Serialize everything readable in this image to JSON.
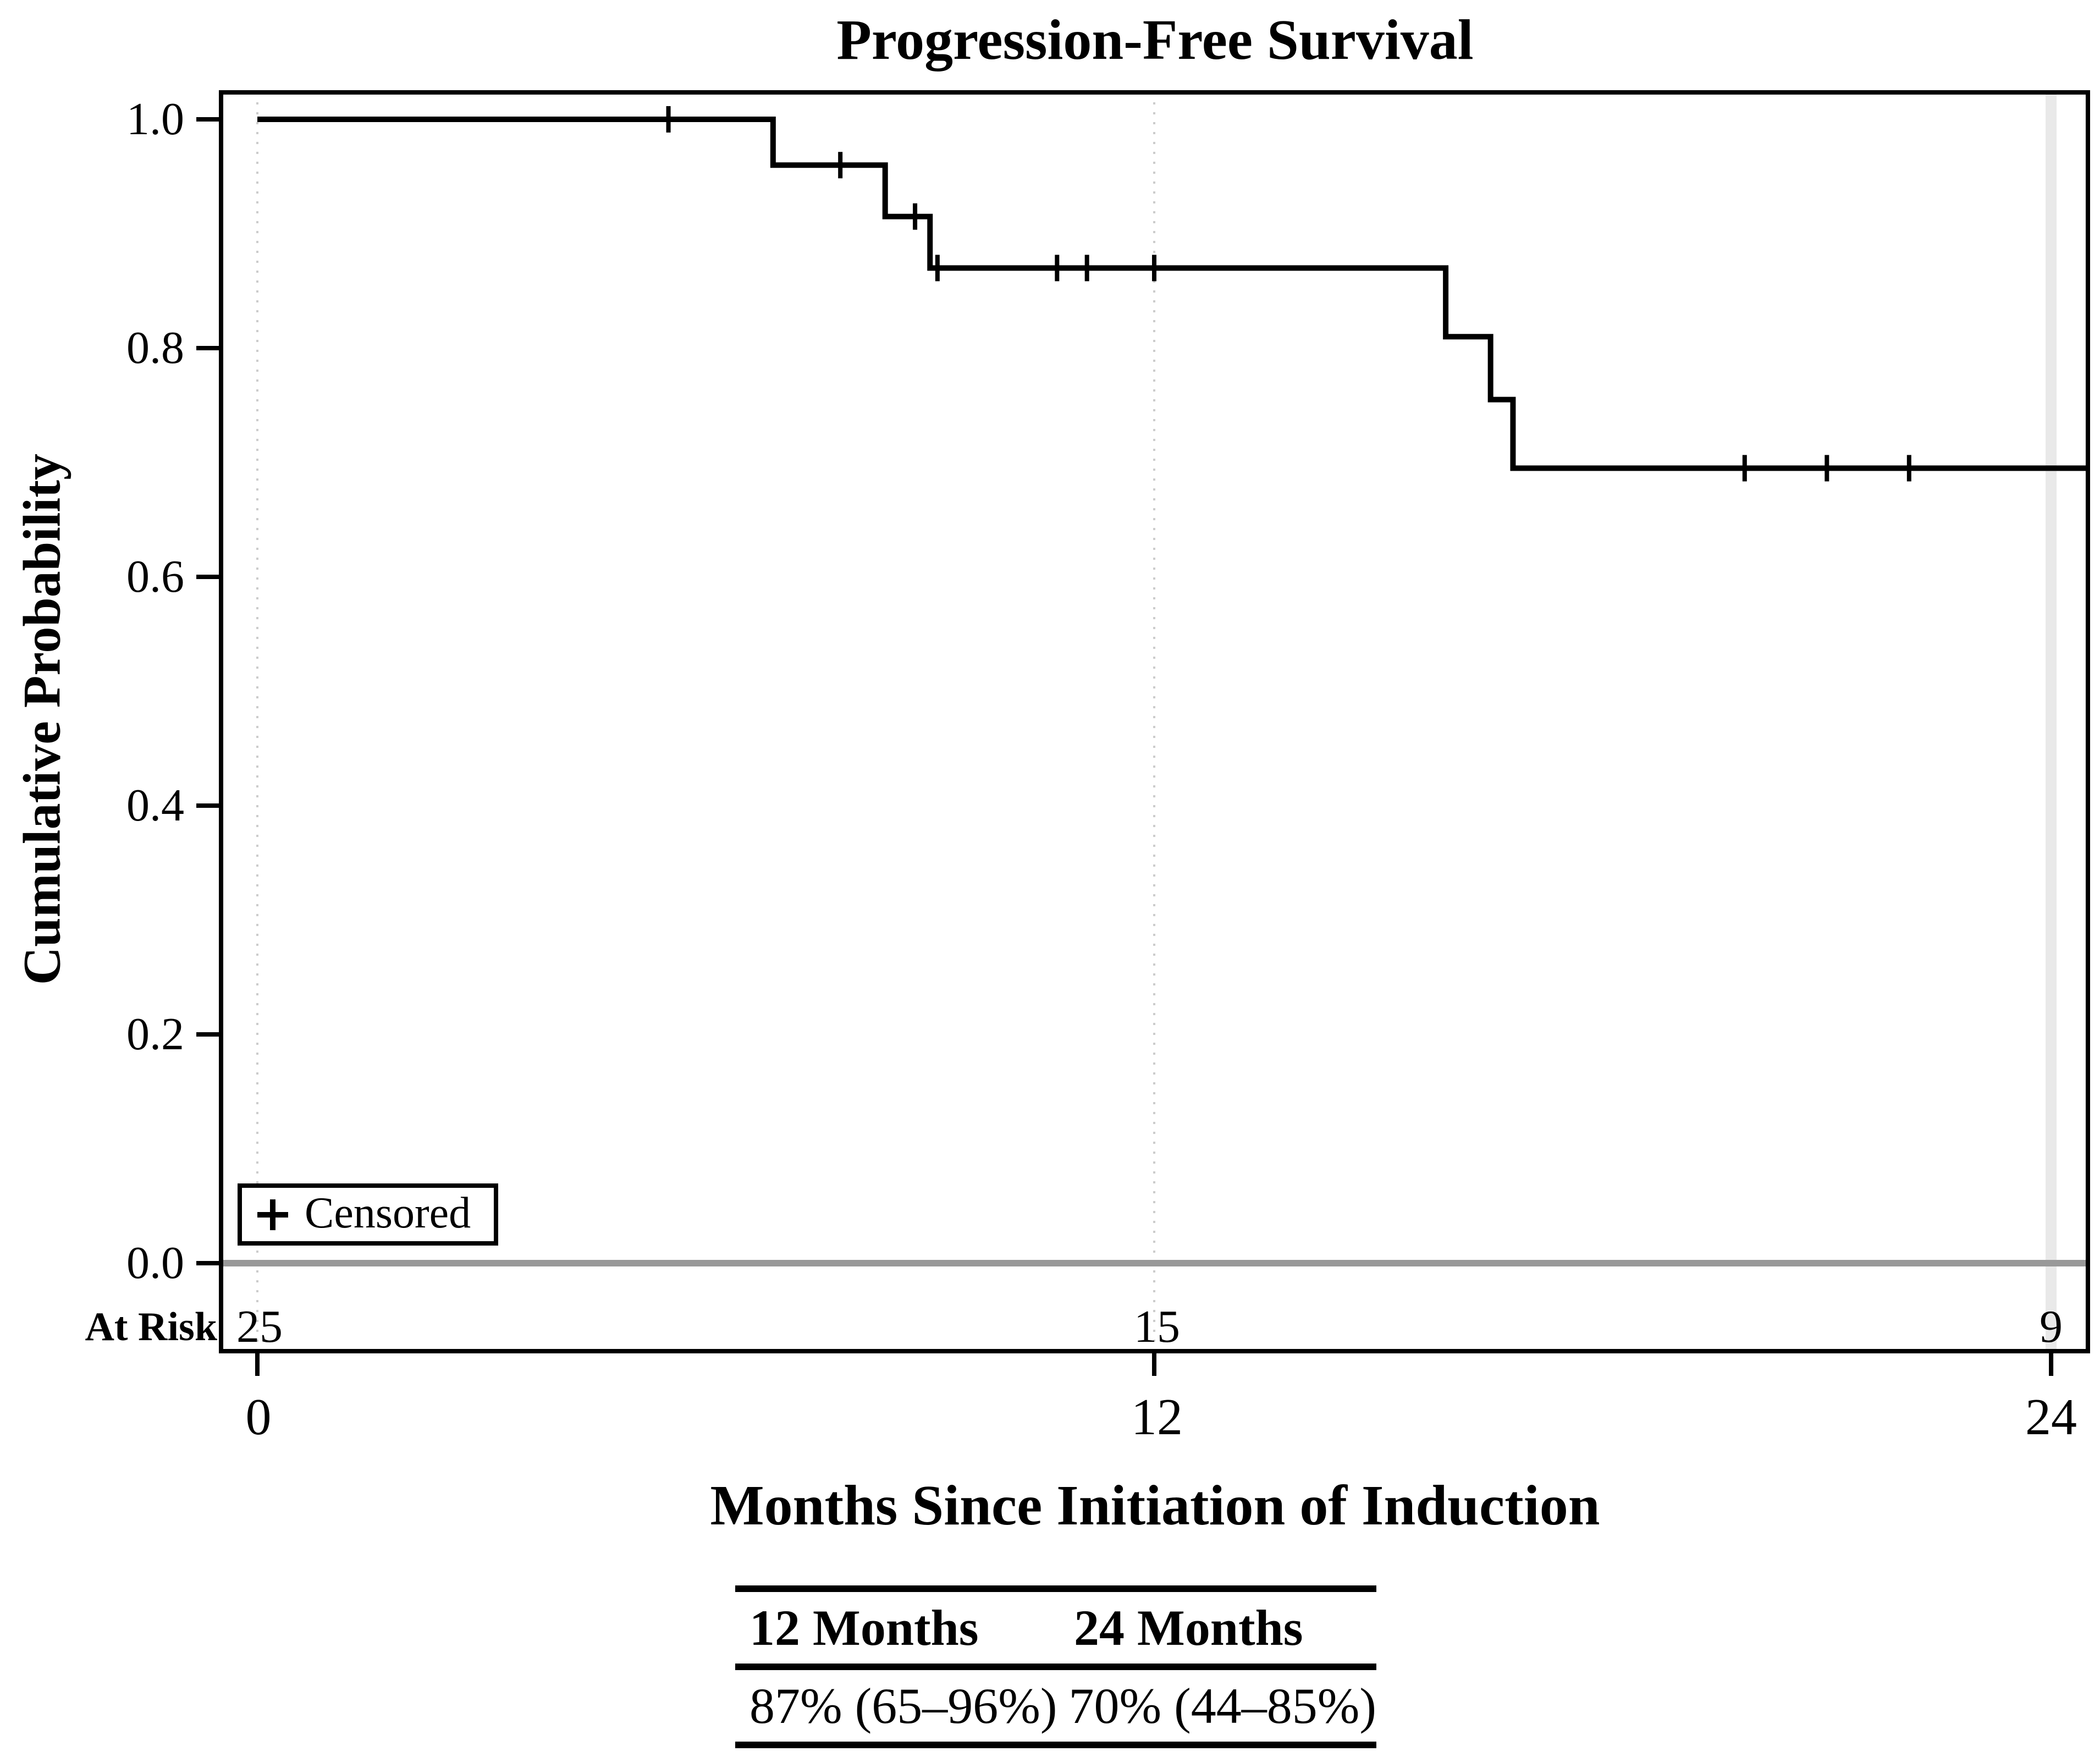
{
  "figure": {
    "title": "Progression-Free Survival",
    "y_axis": {
      "label": "Cumulative Probability",
      "ticks": [
        "1.0",
        "0.8",
        "0.6",
        "0.4",
        "0.2",
        "0.0"
      ]
    },
    "x_axis": {
      "label": "Months Since Initiation of Induction",
      "ticks": [
        "0",
        "12",
        "24"
      ]
    },
    "legend": {
      "marker_icon": "plus-icon",
      "label": "Censored"
    },
    "at_risk": {
      "label": "At Risk",
      "values": [
        "25",
        "15",
        "9"
      ]
    },
    "summary_table": {
      "headers": [
        "12 Months",
        "24 Months"
      ],
      "values": [
        "87% (65–96%)",
        "70% (44–85%)"
      ]
    }
  },
  "chart_data": {
    "type": "line",
    "subtype": "kaplan-meier-step",
    "title": "Progression-Free Survival",
    "xlabel": "Months Since Initiation of Induction",
    "ylabel": "Cumulative Probability",
    "xlim": [
      0,
      24.5
    ],
    "ylim": [
      0.0,
      1.0
    ],
    "x_ticks": [
      0,
      12,
      24
    ],
    "y_ticks": [
      1.0,
      0.8,
      0.6,
      0.4,
      0.2,
      0.0
    ],
    "grid": "vertical-gridlines-at-x-ticks-only",
    "legend_position": "inside-bottom-left",
    "steps": [
      [
        0.0,
        1.0
      ],
      [
        6.9,
        0.96
      ],
      [
        8.4,
        0.915
      ],
      [
        9.0,
        0.87
      ],
      [
        15.9,
        0.81
      ],
      [
        16.5,
        0.755
      ],
      [
        16.8,
        0.695
      ]
    ],
    "curve_end_x": 24.5,
    "censored": [
      [
        5.5,
        1.0
      ],
      [
        7.8,
        0.96
      ],
      [
        8.8,
        0.915
      ],
      [
        9.1,
        0.87
      ],
      [
        10.7,
        0.87
      ],
      [
        11.1,
        0.87
      ],
      [
        12.0,
        0.87
      ],
      [
        19.9,
        0.695
      ],
      [
        21.0,
        0.695
      ],
      [
        22.1,
        0.695
      ]
    ],
    "at_risk": {
      "times": [
        0,
        12,
        24
      ],
      "counts": [
        25,
        15,
        9
      ]
    },
    "estimates": [
      {
        "time": "12 Months",
        "estimate": "87% (65–96%)"
      },
      {
        "time": "24 Months",
        "estimate": "70% (44–85%)"
      }
    ],
    "colors": {
      "curve": "#000000",
      "frame": "#000000",
      "zero_line": "#999999",
      "gridline": "#cccccc",
      "gridline_24": "#e9e9e9"
    }
  }
}
